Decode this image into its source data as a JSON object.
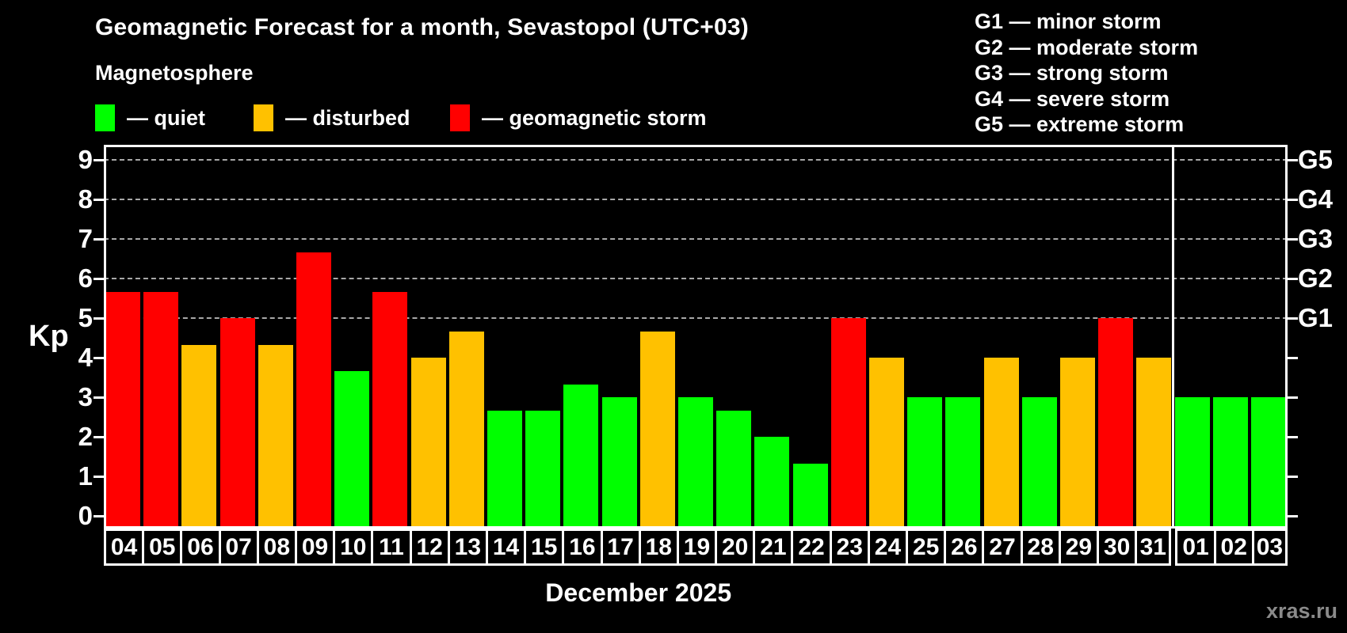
{
  "title": "Geomagnetic Forecast for a month, Sevastopol (UTC+03)",
  "subtitle": "Magnetosphere",
  "legend": [
    {
      "key": "quiet",
      "label": "— quiet",
      "color": "#00ff00"
    },
    {
      "key": "disturbed",
      "label": "— disturbed",
      "color": "#ffc100"
    },
    {
      "key": "storm",
      "label": "— geomagnetic storm",
      "color": "#ff0000"
    }
  ],
  "g_legend": [
    "G1 — minor storm",
    "G2 — moderate storm",
    "G3 — strong storm",
    "G4 — severe storm",
    "G5 — extreme storm"
  ],
  "chart_data": {
    "type": "bar",
    "title": "Geomagnetic Forecast for a month, Sevastopol (UTC+03)",
    "ylabel": "Kp",
    "xlabel": "December 2025",
    "ylim": [
      0,
      9
    ],
    "yticks": [
      0,
      1,
      2,
      3,
      4,
      5,
      6,
      7,
      8,
      9
    ],
    "gridlines_kp": [
      5,
      6,
      7,
      8,
      9
    ],
    "right_axis_labels": [
      {
        "kp": 5,
        "label": "G1"
      },
      {
        "kp": 6,
        "label": "G2"
      },
      {
        "kp": 7,
        "label": "G3"
      },
      {
        "kp": 8,
        "label": "G4"
      },
      {
        "kp": 9,
        "label": "G5"
      }
    ],
    "legend_position": "top-left",
    "grid": "dashed, G-storm levels only",
    "categories": [
      "04",
      "05",
      "06",
      "07",
      "08",
      "09",
      "10",
      "11",
      "12",
      "13",
      "14",
      "15",
      "16",
      "17",
      "18",
      "19",
      "20",
      "21",
      "22",
      "23",
      "24",
      "25",
      "26",
      "27",
      "28",
      "29",
      "30",
      "31",
      "01",
      "02",
      "03"
    ],
    "values": [
      5.67,
      5.67,
      4.33,
      5,
      4.33,
      6.67,
      3.67,
      5.67,
      4,
      4.67,
      2.67,
      2.67,
      3.33,
      3,
      4.67,
      3,
      2.67,
      2,
      1.33,
      5,
      4,
      3,
      3,
      4,
      3,
      4,
      5,
      4,
      3,
      3,
      3
    ],
    "statuses": [
      "storm",
      "storm",
      "disturbed",
      "storm",
      "disturbed",
      "storm",
      "quiet",
      "storm",
      "disturbed",
      "disturbed",
      "quiet",
      "quiet",
      "quiet",
      "quiet",
      "disturbed",
      "quiet",
      "quiet",
      "quiet",
      "quiet",
      "storm",
      "disturbed",
      "quiet",
      "quiet",
      "disturbed",
      "quiet",
      "disturbed",
      "storm",
      "disturbed",
      "quiet",
      "quiet",
      "quiet"
    ],
    "colors_by_status": {
      "quiet": "#00ff00",
      "disturbed": "#ffc100",
      "storm": "#ff0000"
    },
    "month_separator_after_index": 27
  },
  "footer": {
    "month_label": "December 2025",
    "watermark": "xras.ru"
  }
}
